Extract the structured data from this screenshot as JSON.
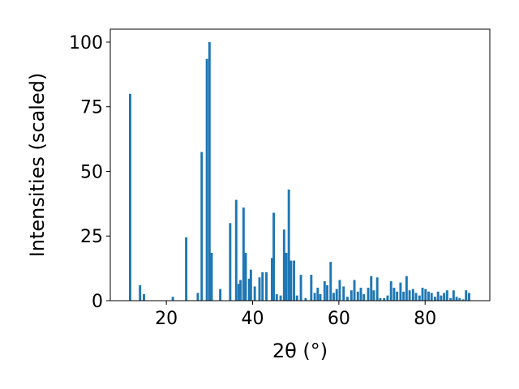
{
  "chart_data": {
    "type": "bar",
    "xlabel": "2θ (°)",
    "ylabel": "Intensities (scaled)",
    "xlim": [
      7,
      95
    ],
    "ylim": [
      0,
      105
    ],
    "grid": false,
    "bar_color": "#1f77b4",
    "bar_width": 0.55,
    "xticks": [
      20,
      40,
      60,
      80
    ],
    "yticks": [
      0,
      25,
      50,
      75,
      100
    ],
    "x": [
      11.6,
      13.9,
      14.8,
      21.5,
      24.6,
      27.3,
      28.2,
      29.4,
      30.0,
      30.5,
      32.5,
      34.8,
      36.2,
      36.8,
      37.2,
      37.9,
      38.4,
      39.2,
      39.6,
      40.5,
      41.6,
      42.3,
      43.2,
      44.5,
      44.9,
      45.6,
      46.5,
      47.3,
      47.8,
      48.4,
      48.9,
      49.6,
      50.3,
      51.2,
      52.3,
      53.6,
      54.4,
      55.1,
      55.7,
      56.7,
      57.3,
      58.1,
      58.8,
      59.5,
      60.2,
      61.1,
      62.0,
      62.9,
      63.6,
      64.4,
      65.1,
      65.8,
      66.8,
      67.5,
      68.1,
      68.9,
      69.6,
      70.5,
      71.3,
      72.1,
      72.8,
      73.5,
      74.3,
      75.0,
      75.7,
      76.4,
      77.2,
      77.9,
      78.7,
      79.4,
      80.1,
      80.8,
      81.5,
      82.3,
      83.0,
      83.7,
      84.4,
      85.1,
      85.9,
      86.6,
      87.3,
      88.0,
      88.8,
      89.5,
      90.2
    ],
    "values": [
      80,
      6,
      2.5,
      1.5,
      24.5,
      3,
      57.5,
      93.5,
      100,
      18.5,
      4.5,
      30,
      39,
      6.5,
      8,
      36,
      18.5,
      8.5,
      12,
      5.5,
      9,
      11,
      11,
      16.5,
      34,
      2.5,
      2,
      27.5,
      18.5,
      43,
      15.5,
      15.5,
      2,
      10,
      1,
      10,
      3,
      5,
      2.5,
      7.5,
      6,
      15,
      3,
      4.5,
      8,
      5.5,
      1.5,
      4,
      8,
      3.5,
      5,
      2.5,
      5,
      9.5,
      4,
      9,
      1,
      1,
      2,
      7.5,
      5,
      3.5,
      7,
      3.5,
      9.5,
      4,
      4.5,
      3,
      2,
      5,
      4.5,
      3.5,
      3,
      1.5,
      3.5,
      2,
      3,
      4,
      1,
      4,
      1.5,
      1,
      0.5,
      4,
      3
    ]
  }
}
